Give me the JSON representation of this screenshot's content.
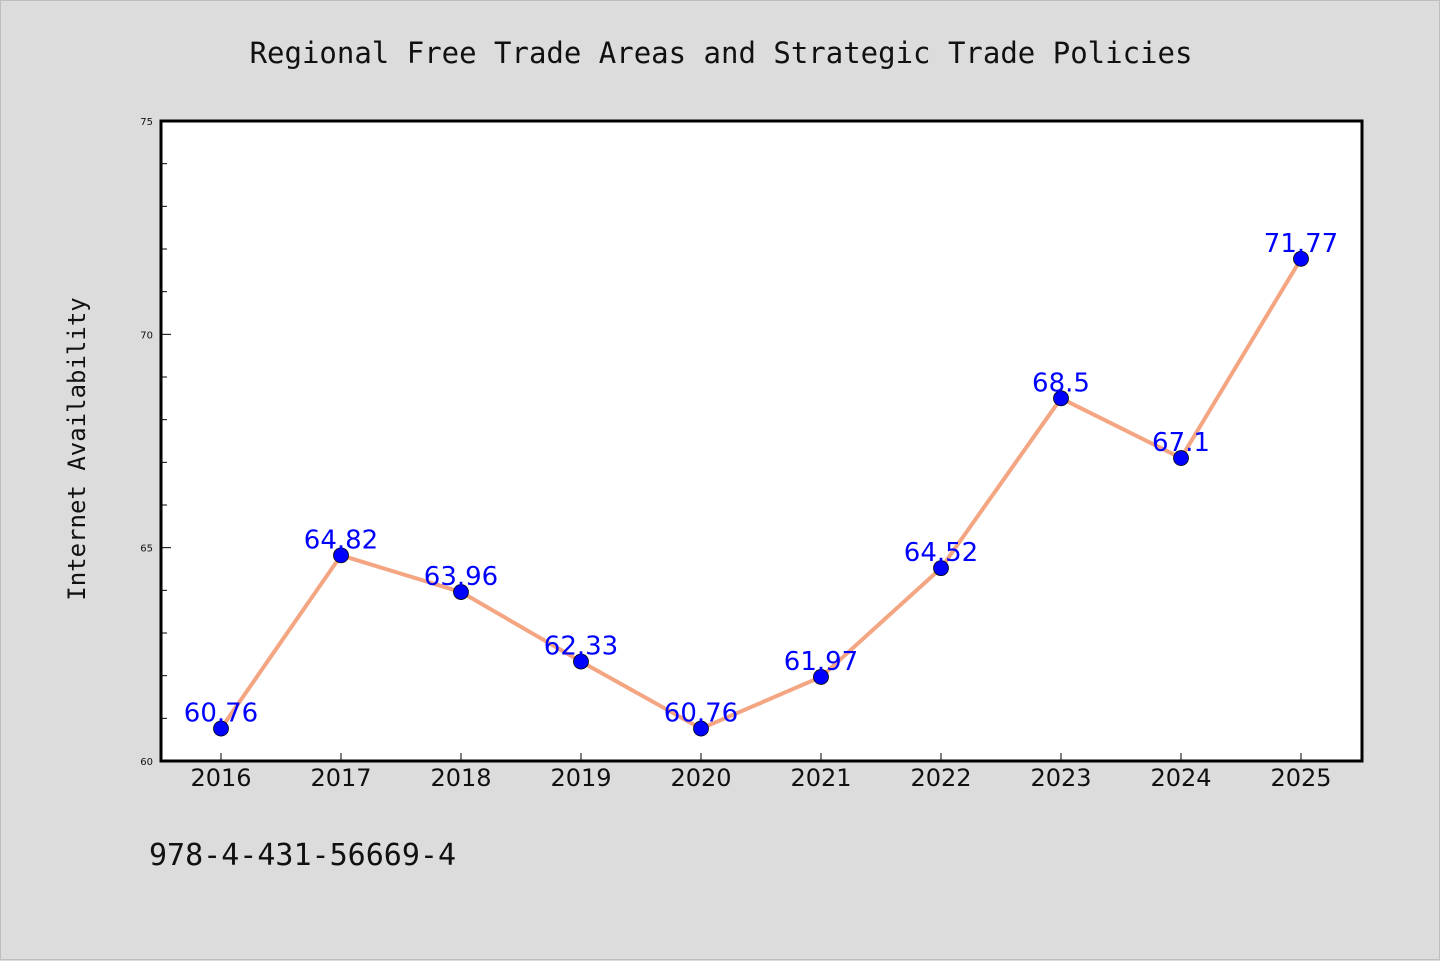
{
  "chart_data": {
    "type": "line",
    "title": "Regional Free Trade Areas and Strategic Trade Policies",
    "ylabel": "Internet Availability",
    "xlabel": "",
    "categories": [
      "2016",
      "2017",
      "2018",
      "2019",
      "2020",
      "2021",
      "2022",
      "2023",
      "2024",
      "2025"
    ],
    "series": [
      {
        "values": [
          60.76,
          64.82,
          63.96,
          62.33,
          60.76,
          61.97,
          64.52,
          68.5,
          67.1,
          71.77
        ]
      }
    ],
    "data_labels": [
      "60.76",
      "64.82",
      "63.96",
      "62.33",
      "60.76",
      "61.97",
      "64.52",
      "68.5",
      "67.1",
      "71.77"
    ],
    "ylim": [
      60,
      75
    ],
    "yticks": [
      "60",
      "65",
      "70",
      "75"
    ],
    "grid": false,
    "line_color": "#f4a582",
    "marker_color": "#0000ff",
    "label_color": "#0000ff"
  },
  "footer": {
    "code": "978-4-431-56669-4"
  }
}
